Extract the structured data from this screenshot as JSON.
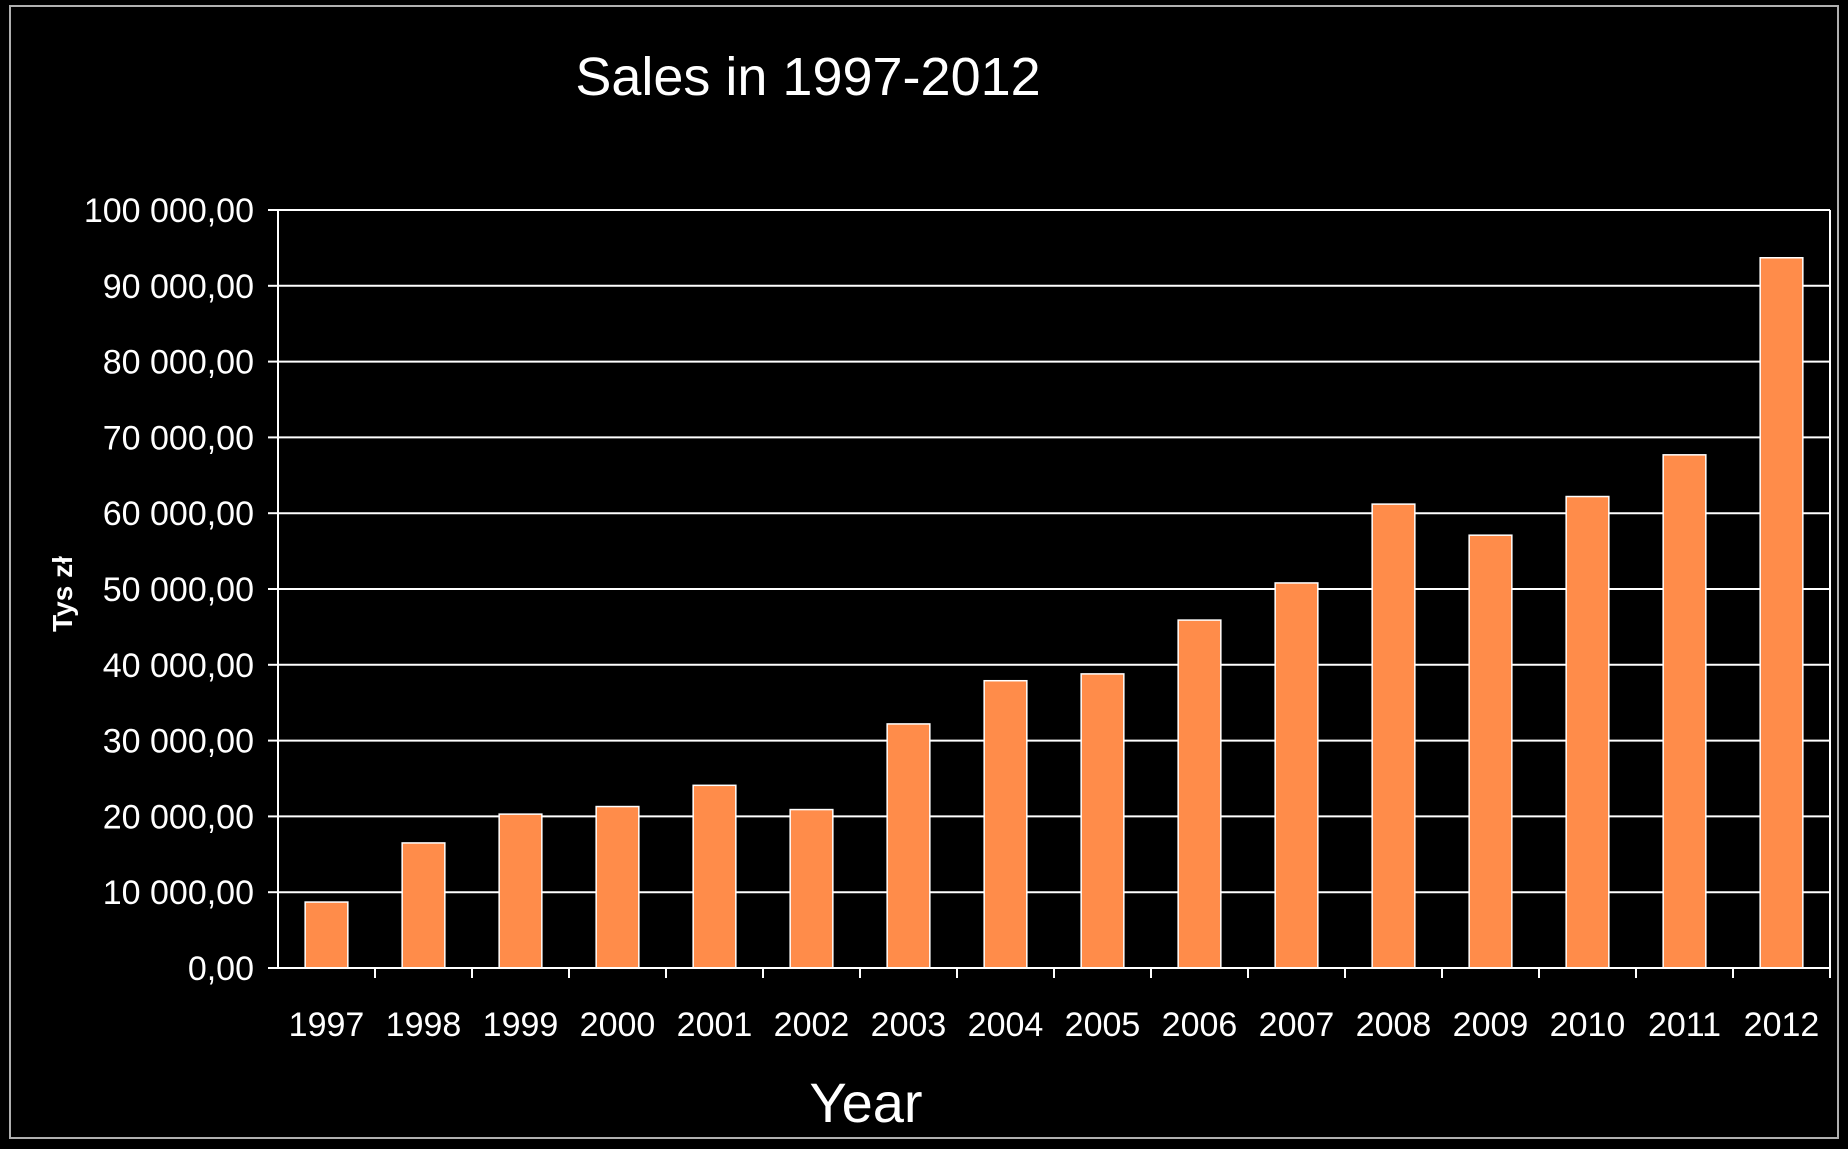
{
  "chart_data": {
    "type": "bar",
    "title": "Sales in 1997-2012",
    "xlabel": "Year",
    "ylabel": "Tys zł",
    "categories": [
      "1997",
      "1998",
      "1999",
      "2000",
      "2001",
      "2002",
      "2003",
      "2004",
      "2005",
      "2006",
      "2007",
      "2008",
      "2009",
      "2010",
      "2011",
      "2012"
    ],
    "values": [
      8700,
      16500,
      20300,
      21300,
      24100,
      20900,
      32200,
      37900,
      38800,
      45900,
      50800,
      61200,
      57100,
      62200,
      67700,
      93700
    ],
    "ylim": [
      0,
      100000
    ],
    "yticks": [
      0,
      10000,
      20000,
      30000,
      40000,
      50000,
      60000,
      70000,
      80000,
      90000,
      100000
    ],
    "ytick_labels": [
      "0,00",
      "10 000,00",
      "20 000,00",
      "30 000,00",
      "40 000,00",
      "50 000,00",
      "60 000,00",
      "70 000,00",
      "80 000,00",
      "90 000,00",
      "100 000,00"
    ],
    "grid": true,
    "legend": "none",
    "colors": {
      "background": "#000000",
      "bar": "#ff8c4a",
      "bar_edge": "#ffffff",
      "grid": "#ffffff",
      "text": "#ffffff"
    }
  }
}
